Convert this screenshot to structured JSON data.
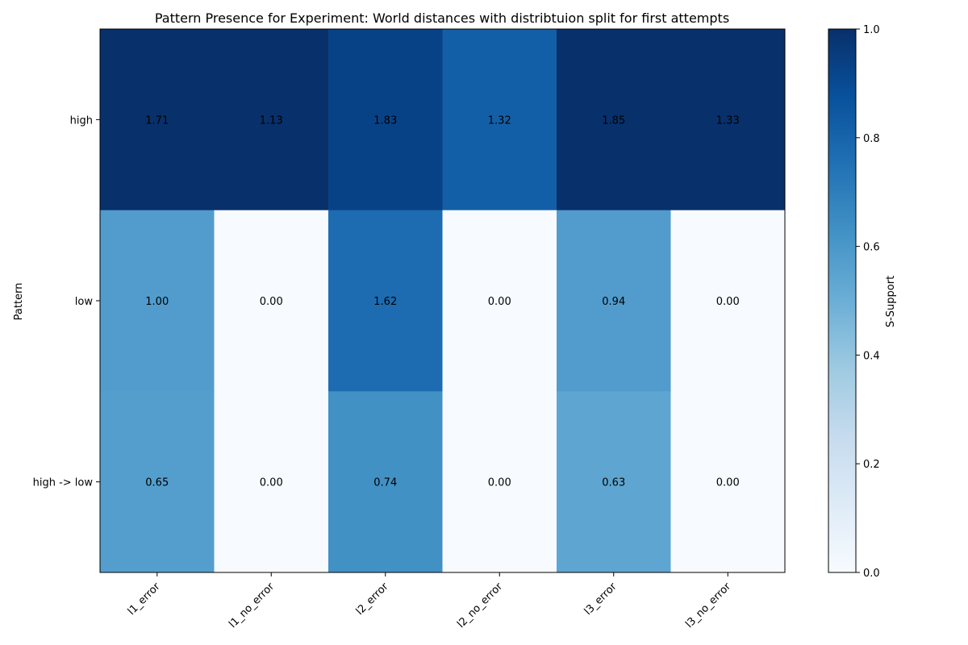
{
  "chart_data": {
    "type": "heatmap",
    "title": "Pattern Presence for Experiment: World distances with distribtuion split for first attempts",
    "xlabel": "",
    "ylabel": "Pattern",
    "x_categories": [
      "l1_error",
      "l1_no_error",
      "l2_error",
      "l2_no_error",
      "l3_error",
      "l3_no_error"
    ],
    "y_categories": [
      "high",
      "low",
      "high -> low"
    ],
    "colors": [
      [
        1.0,
        1.0,
        0.93,
        0.82,
        1.0,
        1.0
      ],
      [
        0.58,
        0.0,
        0.77,
        0.0,
        0.58,
        0.0
      ],
      [
        0.57,
        0.0,
        0.63,
        0.0,
        0.54,
        0.0
      ]
    ],
    "annotations": [
      [
        "1.71",
        "1.13",
        "1.83",
        "1.32",
        "1.85",
        "1.33"
      ],
      [
        "1.00",
        "0.00",
        "1.62",
        "0.00",
        "0.94",
        "0.00"
      ],
      [
        "0.65",
        "0.00",
        "0.74",
        "0.00",
        "0.63",
        "0.00"
      ]
    ],
    "colorbar": {
      "label": "S-Support",
      "range": [
        0.0,
        1.0
      ],
      "ticks": [
        "0.0",
        "0.2",
        "0.4",
        "0.6",
        "0.8",
        "1.0"
      ],
      "colormap": "Blues"
    },
    "grid": false
  }
}
